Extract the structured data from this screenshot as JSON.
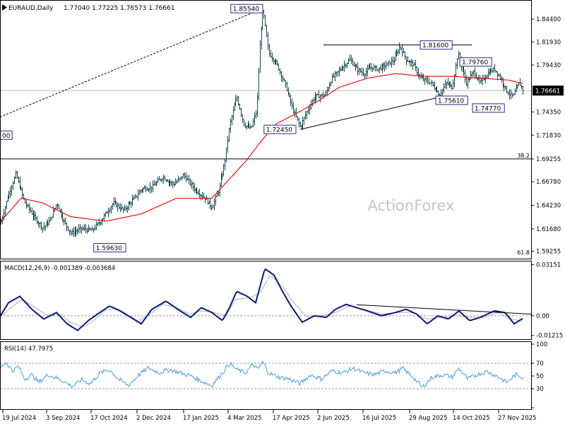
{
  "header": {
    "symbol": "EURAUD,Daily",
    "ohlc": "1.77040 1.77225 1.76573 1.76661"
  },
  "watermark": "ActionForex",
  "colors": {
    "bar": "#1a4a4f",
    "ma": "#e00000",
    "macd": "#0b1a7a",
    "signal": "#b0b0b0",
    "rsi": "#3a8fd8",
    "grid": "#c8c8c8",
    "trendline": "#000000",
    "label_border": "#2a2a8a",
    "current_price_bg": "#000000",
    "current_price_fg": "#ffffff"
  },
  "chart_data": [
    {
      "type": "candlestick",
      "name": "price",
      "title": "EURAUD,Daily",
      "ylim": [
        1.5845,
        1.864
      ],
      "x_ticks": [
        "19 Jul 2024",
        "3 Sep 2024",
        "17 Oct 2024",
        "2 Dec 2024",
        "17 Jan 2025",
        "4 Mar 2025",
        "17 Apr 2025",
        "2 Jun 2025",
        "16 Jul 2025",
        "29 Aug 2025",
        "14 Oct 2025",
        "27 Nov 2025"
      ],
      "y_ticks": [
        "1.84400",
        "1.81930",
        "1.79430",
        "1.76661",
        "1.74350",
        "1.71830",
        "1.69255",
        "1.66780",
        "1.64230",
        "1.61680",
        "1.59255"
      ],
      "current_price": "1.76661",
      "anchors": [
        [
          0,
          1.622
        ],
        [
          10,
          1.65
        ],
        [
          22,
          1.676
        ],
        [
          35,
          1.645
        ],
        [
          48,
          1.63
        ],
        [
          60,
          1.618
        ],
        [
          70,
          1.625
        ],
        [
          80,
          1.645
        ],
        [
          90,
          1.625
        ],
        [
          100,
          1.612
        ],
        [
          115,
          1.617
        ],
        [
          130,
          1.615
        ],
        [
          145,
          1.628
        ],
        [
          160,
          1.645
        ],
        [
          175,
          1.637
        ],
        [
          190,
          1.65
        ],
        [
          200,
          1.66
        ],
        [
          215,
          1.662
        ],
        [
          230,
          1.673
        ],
        [
          245,
          1.665
        ],
        [
          260,
          1.675
        ],
        [
          275,
          1.66
        ],
        [
          290,
          1.65
        ],
        [
          300,
          1.64
        ],
        [
          310,
          1.66
        ],
        [
          318,
          1.69
        ],
        [
          325,
          1.73
        ],
        [
          335,
          1.76
        ],
        [
          345,
          1.73
        ],
        [
          355,
          1.725
        ],
        [
          363,
          1.745
        ],
        [
          368,
          1.82
        ],
        [
          372,
          1.855
        ],
        [
          380,
          1.808
        ],
        [
          392,
          1.795
        ],
        [
          405,
          1.77
        ],
        [
          415,
          1.745
        ],
        [
          425,
          1.727
        ],
        [
          435,
          1.745
        ],
        [
          445,
          1.76
        ],
        [
          460,
          1.762
        ],
        [
          470,
          1.78
        ],
        [
          482,
          1.79
        ],
        [
          495,
          1.8
        ],
        [
          505,
          1.79
        ],
        [
          515,
          1.785
        ],
        [
          525,
          1.792
        ],
        [
          535,
          1.79
        ],
        [
          548,
          1.795
        ],
        [
          558,
          1.8
        ],
        [
          566,
          1.815
        ],
        [
          575,
          1.8
        ],
        [
          585,
          1.795
        ],
        [
          595,
          1.78
        ],
        [
          610,
          1.775
        ],
        [
          622,
          1.762
        ],
        [
          632,
          1.775
        ],
        [
          640,
          1.77
        ],
        [
          648,
          1.807
        ],
        [
          660,
          1.775
        ],
        [
          670,
          1.787
        ],
        [
          680,
          1.775
        ],
        [
          690,
          1.785
        ],
        [
          700,
          1.79
        ],
        [
          710,
          1.778
        ],
        [
          718,
          1.765
        ],
        [
          726,
          1.76
        ],
        [
          735,
          1.775
        ],
        [
          741,
          1.7666
        ]
      ],
      "ma_anchors": [
        [
          0,
          1.624
        ],
        [
          30,
          1.65
        ],
        [
          60,
          1.645
        ],
        [
          100,
          1.63
        ],
        [
          150,
          1.625
        ],
        [
          200,
          1.633
        ],
        [
          250,
          1.65
        ],
        [
          300,
          1.65
        ],
        [
          330,
          1.675
        ],
        [
          350,
          1.692
        ],
        [
          370,
          1.712
        ],
        [
          390,
          1.73
        ],
        [
          420,
          1.742
        ],
        [
          450,
          1.755
        ],
        [
          480,
          1.77
        ],
        [
          520,
          1.78
        ],
        [
          560,
          1.785
        ],
        [
          600,
          1.782
        ],
        [
          640,
          1.782
        ],
        [
          680,
          1.78
        ],
        [
          720,
          1.778
        ],
        [
          741,
          1.774
        ]
      ],
      "trendlines": [
        {
          "from": [
            0,
            1.738
          ],
          "to": [
            372,
            1.8554
          ],
          "style": "dashed"
        },
        {
          "from": [
            458,
            1.816
          ],
          "to": [
            668,
            1.816
          ],
          "style": "solid"
        },
        {
          "from": [
            425,
            1.7245
          ],
          "to": [
            620,
            1.759
          ],
          "style": "solid"
        }
      ],
      "h_levels": [
        {
          "y": 1.69255,
          "label": "38.2"
        },
        {
          "y": 1.5877,
          "label": "61.8"
        }
      ],
      "labels": [
        {
          "text": "1.85540",
          "x": 372,
          "y": 1.8554,
          "side": "left"
        },
        {
          "text": "1.81600",
          "x": 595,
          "y": 1.816,
          "side": "right"
        },
        {
          "text": "1.79760",
          "x": 651,
          "y": 1.7976,
          "side": "right"
        },
        {
          "text": "1.75610",
          "x": 617,
          "y": 1.7561,
          "side": "right"
        },
        {
          "text": "1.74770",
          "x": 669,
          "y": 1.7477,
          "side": "right"
        },
        {
          "text": "1.72450",
          "x": 419,
          "y": 1.7245,
          "side": "left"
        },
        {
          "text": "1.59630",
          "x": 178,
          "y": 1.5963,
          "side": "left"
        },
        {
          "text": "00",
          "x": 2,
          "y": 1.7183,
          "side": "right"
        }
      ]
    },
    {
      "type": "line",
      "name": "MACD(12,26,9)",
      "title": "MACD(12,26,9) -0.001389 -0.003684",
      "ylim": [
        -0.014,
        0.033
      ],
      "y_ticks": [
        "0.03151",
        "0.00",
        "-0.01215"
      ],
      "series": [
        {
          "name": "MACD",
          "anchors": [
            [
              0,
              -0.0005
            ],
            [
              12,
              0.008
            ],
            [
              28,
              0.012
            ],
            [
              45,
              0.004
            ],
            [
              62,
              -0.002
            ],
            [
              80,
              0.002
            ],
            [
              95,
              -0.005
            ],
            [
              110,
              -0.009
            ],
            [
              125,
              -0.003
            ],
            [
              138,
              0.001
            ],
            [
              155,
              0.006
            ],
            [
              170,
              0.003
            ],
            [
              185,
              -0.001
            ],
            [
              200,
              -0.005
            ],
            [
              215,
              0.004
            ],
            [
              235,
              0.009
            ],
            [
              255,
              0.003
            ],
            [
              270,
              -0.001
            ],
            [
              285,
              0.005
            ],
            [
              300,
              0.002
            ],
            [
              315,
              -0.003
            ],
            [
              325,
              0.005
            ],
            [
              335,
              0.015
            ],
            [
              350,
              0.012
            ],
            [
              362,
              0.008
            ],
            [
              375,
              0.029
            ],
            [
              388,
              0.025
            ],
            [
              400,
              0.015
            ],
            [
              412,
              0.006
            ],
            [
              428,
              -0.004
            ],
            [
              445,
              0.0
            ],
            [
              462,
              -0.001
            ],
            [
              475,
              0.004
            ],
            [
              490,
              0.007
            ],
            [
              505,
              0.005
            ],
            [
              520,
              0.003
            ],
            [
              540,
              0.0
            ],
            [
              560,
              0.002
            ],
            [
              575,
              0.004
            ],
            [
              590,
              0.001
            ],
            [
              605,
              -0.005
            ],
            [
              620,
              0.0
            ],
            [
              635,
              -0.002
            ],
            [
              650,
              0.003
            ],
            [
              665,
              -0.003
            ],
            [
              680,
              -0.001
            ],
            [
              700,
              0.003
            ],
            [
              715,
              0.002
            ],
            [
              728,
              -0.005
            ],
            [
              741,
              -0.0014
            ]
          ]
        },
        {
          "name": "Signal",
          "anchors": [
            [
              0,
              -0.001
            ],
            [
              15,
              0.005
            ],
            [
              32,
              0.01
            ],
            [
              50,
              0.005
            ],
            [
              68,
              0.0
            ],
            [
              85,
              0.001
            ],
            [
              100,
              -0.004
            ],
            [
              118,
              -0.007
            ],
            [
              133,
              -0.003
            ],
            [
              148,
              0.003
            ],
            [
              163,
              0.005
            ],
            [
              180,
              0.001
            ],
            [
              195,
              -0.003
            ],
            [
              210,
              0.0
            ],
            [
              230,
              0.007
            ],
            [
              250,
              0.005
            ],
            [
              268,
              0.001
            ],
            [
              285,
              0.003
            ],
            [
              303,
              0.002
            ],
            [
              320,
              0.0
            ],
            [
              333,
              0.01
            ],
            [
              352,
              0.011
            ],
            [
              368,
              0.014
            ],
            [
              383,
              0.025
            ],
            [
              400,
              0.018
            ],
            [
              418,
              0.007
            ],
            [
              435,
              -0.001
            ],
            [
              455,
              0.0
            ],
            [
              475,
              0.002
            ],
            [
              495,
              0.006
            ],
            [
              515,
              0.004
            ],
            [
              540,
              0.001
            ],
            [
              565,
              0.002
            ],
            [
              585,
              0.002
            ],
            [
              605,
              -0.002
            ],
            [
              625,
              -0.001
            ],
            [
              645,
              0.0
            ],
            [
              665,
              -0.001
            ],
            [
              685,
              -0.001
            ],
            [
              705,
              0.002
            ],
            [
              725,
              -0.002
            ],
            [
              741,
              -0.0037
            ]
          ]
        }
      ],
      "trendline": {
        "from": [
          505,
          0.0068
        ],
        "to": [
          752,
          0.001
        ]
      }
    },
    {
      "type": "line",
      "name": "RSI(14)",
      "title": "RSI(14) 47.7975",
      "ylim": [
        0,
        100
      ],
      "y_ticks": [
        "100",
        "70",
        "50",
        "30",
        "0"
      ],
      "ref_lines": [
        70,
        30
      ],
      "anchors": [
        [
          0,
          62
        ],
        [
          8,
          72
        ],
        [
          18,
          58
        ],
        [
          26,
          65
        ],
        [
          35,
          45
        ],
        [
          45,
          52
        ],
        [
          55,
          40
        ],
        [
          68,
          52
        ],
        [
          78,
          48
        ],
        [
          90,
          42
        ],
        [
          103,
          33
        ],
        [
          115,
          44
        ],
        [
          128,
          38
        ],
        [
          142,
          55
        ],
        [
          155,
          60
        ],
        [
          168,
          45
        ],
        [
          182,
          35
        ],
        [
          195,
          50
        ],
        [
          210,
          63
        ],
        [
          225,
          55
        ],
        [
          240,
          60
        ],
        [
          255,
          55
        ],
        [
          270,
          50
        ],
        [
          285,
          42
        ],
        [
          300,
          35
        ],
        [
          315,
          55
        ],
        [
          325,
          70
        ],
        [
          335,
          60
        ],
        [
          348,
          55
        ],
        [
          358,
          68
        ],
        [
          365,
          60
        ],
        [
          372,
          72
        ],
        [
          380,
          55
        ],
        [
          395,
          48
        ],
        [
          410,
          45
        ],
        [
          425,
          38
        ],
        [
          440,
          52
        ],
        [
          455,
          45
        ],
        [
          470,
          58
        ],
        [
          485,
          55
        ],
        [
          500,
          62
        ],
        [
          515,
          55
        ],
        [
          530,
          52
        ],
        [
          545,
          58
        ],
        [
          560,
          55
        ],
        [
          570,
          62
        ],
        [
          585,
          48
        ],
        [
          598,
          32
        ],
        [
          612,
          48
        ],
        [
          628,
          52
        ],
        [
          640,
          48
        ],
        [
          650,
          62
        ],
        [
          662,
          45
        ],
        [
          675,
          52
        ],
        [
          690,
          57
        ],
        [
          703,
          50
        ],
        [
          718,
          40
        ],
        [
          730,
          52
        ],
        [
          741,
          47.8
        ]
      ]
    }
  ]
}
